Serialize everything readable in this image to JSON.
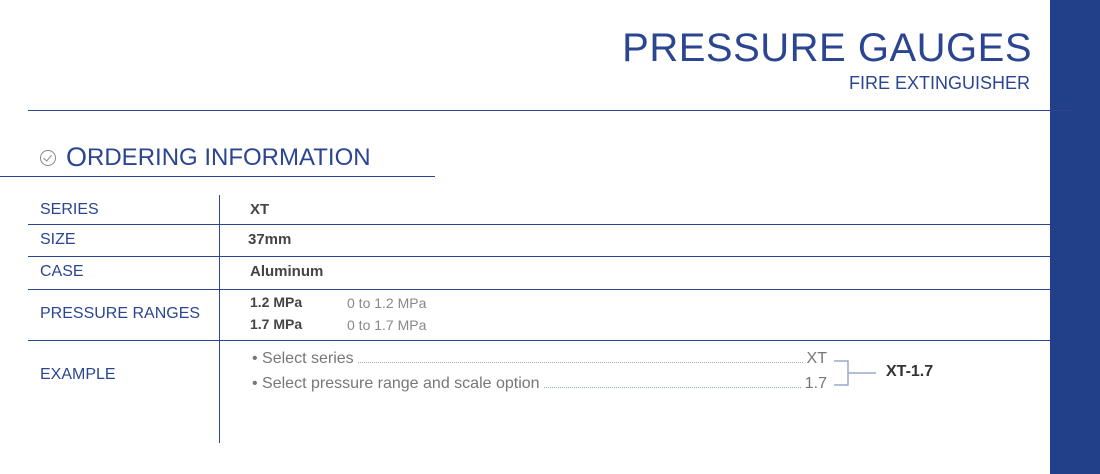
{
  "header": {
    "title": "PRESSURE GAUGES",
    "subtitle": "FIRE EXTINGUISHER"
  },
  "section": {
    "first_letter": "O",
    "rest": "RDERING INFORMATION",
    "icon": "check-circle-icon"
  },
  "table": {
    "series": {
      "label": "SERIES",
      "value": "XT"
    },
    "size": {
      "label": "SIZE",
      "value": "37mm"
    },
    "case": {
      "label": "CASE",
      "value": "Aluminum"
    },
    "pressure": {
      "label": "PRESSURE RANGES",
      "ranges": [
        {
          "code": "1.2 MPa",
          "desc": "0 to 1.2 MPa"
        },
        {
          "code": "1.7 MPa",
          "desc": "0 to 1.7 MPa"
        }
      ]
    },
    "example": {
      "label": "EXAMPLE",
      "steps": [
        {
          "text": "• Select series",
          "code": "XT"
        },
        {
          "text": "• Select pressure range and scale option",
          "code": "1.7"
        }
      ],
      "result": "XT-1.7"
    }
  },
  "colors": {
    "accent": "#2b4590",
    "sidebar": "#22408a"
  }
}
